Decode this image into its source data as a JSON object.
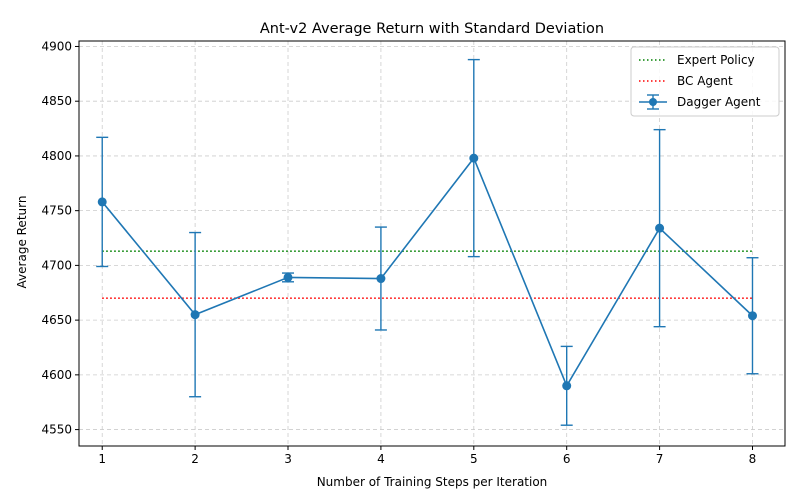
{
  "chart_data": {
    "type": "line",
    "title": "Ant-v2 Average Return with Standard Deviation",
    "xlabel": "Number of Training Steps per Iteration",
    "ylabel": "Average Return",
    "x": [
      1,
      2,
      3,
      4,
      5,
      6,
      7,
      8
    ],
    "xticks": [
      "1",
      "2",
      "3",
      "4",
      "5",
      "6",
      "7",
      "8"
    ],
    "xlim": [
      0.75,
      8.35
    ],
    "ylim": [
      4535,
      4905
    ],
    "yticks": [
      4550,
      4600,
      4650,
      4700,
      4750,
      4800,
      4850,
      4900
    ],
    "ytick_labels": [
      "4550",
      "4600",
      "4650",
      "4700",
      "4750",
      "4800",
      "4850",
      "4900"
    ],
    "grid": true,
    "legend_position": "top-right",
    "series": [
      {
        "name": "Dagger Agent",
        "kind": "errorbar",
        "color": "#1f77b4",
        "values": [
          4758,
          4655,
          4689,
          4688,
          4798,
          4590,
          4734,
          4654
        ],
        "std": [
          59,
          75,
          4,
          47,
          90,
          36,
          90,
          53
        ]
      }
    ],
    "reference_lines": [
      {
        "name": "Expert Policy",
        "value": 4713,
        "color": "#008000",
        "style": "dotted",
        "x_range": [
          1,
          8
        ]
      },
      {
        "name": "BC Agent",
        "value": 4670,
        "color": "#ff0000",
        "style": "dotted",
        "x_range": [
          1,
          8
        ]
      }
    ],
    "legend": [
      "Expert Policy",
      "BC Agent",
      "Dagger Agent"
    ]
  }
}
